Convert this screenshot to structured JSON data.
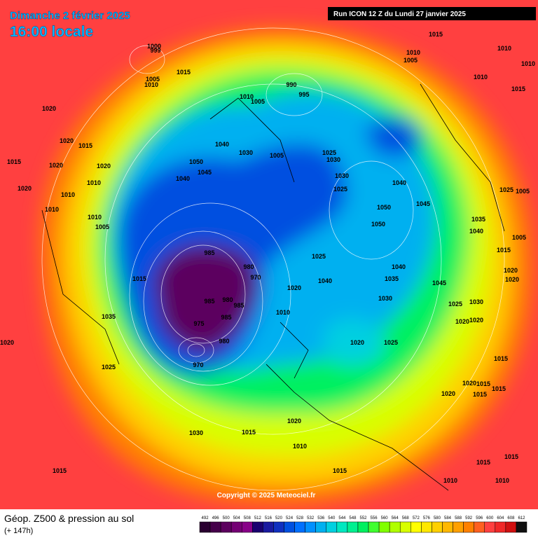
{
  "header": {
    "date": "Dimanche 2 février 2025",
    "time": "16:00 locale",
    "run": "Run ICON 12 Z du Lundi 27 janvier 2025"
  },
  "footer": {
    "title": "Géop. Z500 & pression au sol",
    "subtitle": "(+ 147h)",
    "copyright": "Copyright © 2025 Meteociel.fr"
  },
  "colorbar": {
    "ticks": [
      492,
      496,
      500,
      504,
      508,
      512,
      516,
      520,
      524,
      528,
      532,
      536,
      540,
      544,
      548,
      552,
      556,
      560,
      564,
      568,
      572,
      576,
      580,
      584,
      588,
      592,
      596,
      600,
      604,
      608,
      612
    ],
    "colors": [
      "#2a0030",
      "#45004a",
      "#5c005e",
      "#740074",
      "#880088",
      "#1a0070",
      "#1a1aa0",
      "#1030c0",
      "#0050e0",
      "#0070ff",
      "#0090ff",
      "#00b0f0",
      "#00d0e0",
      "#00e8c0",
      "#00f090",
      "#00f060",
      "#40ff30",
      "#80ff00",
      "#b0ff00",
      "#d8ff00",
      "#ffff00",
      "#ffe800",
      "#ffd000",
      "#ffb800",
      "#ffa000",
      "#ff8000",
      "#ff6020",
      "#ff4040",
      "#f02828",
      "#d01010",
      "#101010"
    ]
  },
  "pressure_labels": [
    999,
    1000,
    1015,
    1005,
    1010,
    1020,
    1020,
    1015,
    1015,
    1020,
    1020,
    1010,
    1010,
    1010,
    1005,
    1020,
    1010,
    1040,
    1045,
    1050,
    1040,
    1030,
    1010,
    1005,
    990,
    995,
    1005,
    1025,
    1030,
    1030,
    1025,
    985,
    980,
    970,
    1015,
    985,
    980,
    985,
    975,
    985,
    980,
    970,
    1020,
    1040,
    1025,
    1010,
    1035,
    1025,
    1020,
    1030,
    1015,
    1020,
    1010,
    1015,
    1015,
    1020,
    1025,
    1030,
    1035,
    1040,
    1045,
    1050,
    1045,
    1040,
    1050,
    1015,
    1010,
    1005,
    1010,
    1010,
    1010,
    1025,
    1005,
    1035,
    1040,
    1015,
    1005,
    1020,
    1020,
    1015,
    1015,
    1030,
    1025,
    1020,
    1020,
    1015,
    1015,
    1015,
    1010,
    1010,
    1015,
    1020,
    1020,
    1015
  ]
}
